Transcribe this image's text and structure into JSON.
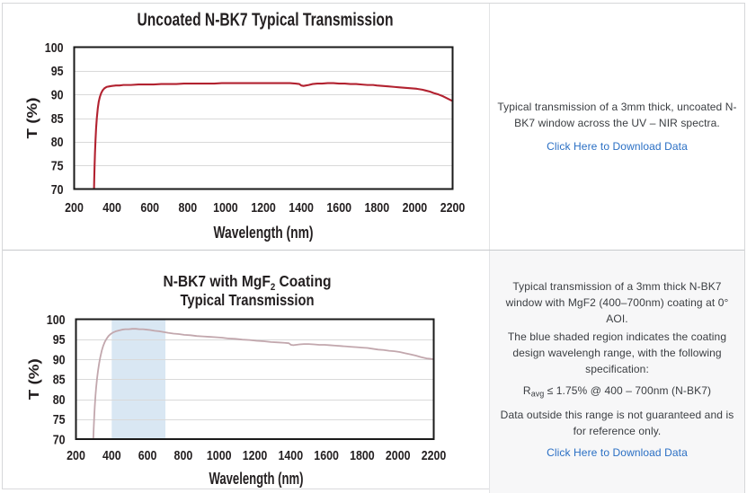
{
  "panel": {
    "row2_bg": "#f7f7f8",
    "border_color": "#d6d7d9",
    "link_color": "#2a6fc4",
    "text_color": "#3a3d41"
  },
  "captions": [
    {
      "paragraphs": [
        [
          "Typical transmission of a 3mm thick, uncoated N-",
          "BK7 window across the UV – NIR spectra."
        ]
      ],
      "link_label": "Click Here to Download Data"
    },
    {
      "paragraphs": [
        [
          "Typical transmission of a 3mm thick N-BK7",
          "window with MgF2 (400–700nm) coating at 0°",
          "AOI."
        ],
        [
          "The blue shaded region indicates the coating",
          "design wavelengh range, with the following",
          "specification:"
        ],
        [
          "Data outside this range is not guaranteed and is",
          "for reference only."
        ]
      ],
      "spec": {
        "prefix": "R",
        "sub": "avg",
        "suffix": " ≤ 1.75% @ 400 – 700nm (N-BK7)"
      },
      "link_label": "Click Here to Download Data"
    }
  ],
  "chart_data": [
    {
      "type": "line",
      "title": "Uncoated N-BK7 Typical Transmission",
      "title_lines": [
        [
          {
            "t": "Uncoated N-BK7 Typical Transmission"
          }
        ]
      ],
      "xlabel": "Wavelength (nm)",
      "ylabel": "T (%)",
      "xlim": [
        200,
        2200
      ],
      "ylim": [
        70,
        100
      ],
      "xticks": [
        200,
        400,
        600,
        800,
        1000,
        1200,
        1400,
        1600,
        1800,
        2000,
        2200
      ],
      "yticks": [
        70,
        75,
        80,
        85,
        90,
        95,
        100
      ],
      "grid": "horizontal",
      "grid_color": "#d9d9d9",
      "frame_color": "#1a1a1a",
      "text_color": "#231f20",
      "legend": "none",
      "series": [
        {
          "name": "Uncoated N-BK7 transmission (3mm thick)",
          "color": "#b22230",
          "points": [
            [
              305,
              70.0
            ],
            [
              306,
              72.0
            ],
            [
              308,
              75.0
            ],
            [
              310,
              77.6
            ],
            [
              313,
              80.5
            ],
            [
              316,
              82.9
            ],
            [
              320,
              85.1
            ],
            [
              325,
              87.1
            ],
            [
              330,
              88.5
            ],
            [
              336,
              89.5
            ],
            [
              343,
              90.3
            ],
            [
              351,
              90.9
            ],
            [
              360,
              91.3
            ],
            [
              372,
              91.6
            ],
            [
              386,
              91.7
            ],
            [
              400,
              91.8
            ],
            [
              420,
              91.9
            ],
            [
              440,
              91.9
            ],
            [
              460,
              92.0
            ],
            [
              480,
              92.0
            ],
            [
              500,
              92.0
            ],
            [
              540,
              92.1
            ],
            [
              580,
              92.1
            ],
            [
              620,
              92.1
            ],
            [
              660,
              92.2
            ],
            [
              700,
              92.2
            ],
            [
              740,
              92.2
            ],
            [
              780,
              92.3
            ],
            [
              820,
              92.3
            ],
            [
              860,
              92.3
            ],
            [
              900,
              92.3
            ],
            [
              940,
              92.3
            ],
            [
              980,
              92.4
            ],
            [
              1020,
              92.4
            ],
            [
              1060,
              92.4
            ],
            [
              1100,
              92.4
            ],
            [
              1140,
              92.4
            ],
            [
              1180,
              92.4
            ],
            [
              1220,
              92.4
            ],
            [
              1260,
              92.4
            ],
            [
              1300,
              92.4
            ],
            [
              1340,
              92.4
            ],
            [
              1370,
              92.3
            ],
            [
              1390,
              92.2
            ],
            [
              1400,
              91.9
            ],
            [
              1412,
              91.8
            ],
            [
              1425,
              91.9
            ],
            [
              1440,
              92.0
            ],
            [
              1460,
              92.2
            ],
            [
              1485,
              92.3
            ],
            [
              1510,
              92.3
            ],
            [
              1540,
              92.4
            ],
            [
              1570,
              92.4
            ],
            [
              1600,
              92.3
            ],
            [
              1630,
              92.3
            ],
            [
              1660,
              92.2
            ],
            [
              1690,
              92.2
            ],
            [
              1720,
              92.1
            ],
            [
              1750,
              92.0
            ],
            [
              1780,
              92.0
            ],
            [
              1800,
              91.9
            ],
            [
              1830,
              91.8
            ],
            [
              1860,
              91.7
            ],
            [
              1890,
              91.6
            ],
            [
              1920,
              91.5
            ],
            [
              1950,
              91.4
            ],
            [
              1980,
              91.3
            ],
            [
              2010,
              91.2
            ],
            [
              2040,
              91.0
            ],
            [
              2060,
              90.8
            ],
            [
              2080,
              90.6
            ],
            [
              2100,
              90.3
            ],
            [
              2125,
              90.0
            ],
            [
              2150,
              89.6
            ],
            [
              2175,
              89.1
            ],
            [
              2200,
              88.6
            ]
          ]
        }
      ]
    },
    {
      "type": "line",
      "title": "N-BK7 with MgF2 Coating Typical Transmission",
      "title_lines": [
        [
          {
            "t": "N-BK7 with MgF"
          },
          {
            "t": "2",
            "sub": true
          },
          {
            "t": " Coating"
          }
        ],
        [
          {
            "t": "Typical Transmission"
          }
        ]
      ],
      "xlabel": "Wavelength (nm)",
      "ylabel": "T (%)",
      "xlim": [
        200,
        2200
      ],
      "ylim": [
        70,
        100
      ],
      "xticks": [
        200,
        400,
        600,
        800,
        1000,
        1200,
        1400,
        1600,
        1800,
        2000,
        2200
      ],
      "yticks": [
        70,
        75,
        80,
        85,
        90,
        95,
        100
      ],
      "grid": "horizontal",
      "grid_color": "#d9d9d9",
      "frame_color": "#1a1a1a",
      "text_color": "#231f20",
      "legend": "none",
      "band": {
        "x1": 400,
        "x2": 700,
        "color": "#d9e7f3",
        "name": "MgF2 coating design wavelength range (400 - 700nm)"
      },
      "series": [
        {
          "name": "N-BK7 with MgF2 coating transmission (3mm thick)",
          "color": "#c2a7ad",
          "points": [
            [
              297,
              70.0
            ],
            [
              299,
              72.5
            ],
            [
              302,
              75.5
            ],
            [
              305,
              78.0
            ],
            [
              309,
              80.8
            ],
            [
              313,
              83.0
            ],
            [
              318,
              85.2
            ],
            [
              323,
              87.0
            ],
            [
              329,
              88.8
            ],
            [
              336,
              90.5
            ],
            [
              344,
              92.1
            ],
            [
              352,
              93.3
            ],
            [
              361,
              94.3
            ],
            [
              371,
              95.1
            ],
            [
              382,
              95.8
            ],
            [
              394,
              96.3
            ],
            [
              408,
              96.7
            ],
            [
              424,
              97.0
            ],
            [
              440,
              97.2
            ],
            [
              458,
              97.4
            ],
            [
              476,
              97.5
            ],
            [
              495,
              97.5
            ],
            [
              515,
              97.6
            ],
            [
              535,
              97.6
            ],
            [
              555,
              97.5
            ],
            [
              575,
              97.5
            ],
            [
              595,
              97.4
            ],
            [
              615,
              97.3
            ],
            [
              640,
              97.1
            ],
            [
              665,
              97.0
            ],
            [
              690,
              96.8
            ],
            [
              715,
              96.6
            ],
            [
              745,
              96.4
            ],
            [
              775,
              96.3
            ],
            [
              805,
              96.1
            ],
            [
              840,
              96.0
            ],
            [
              875,
              95.8
            ],
            [
              910,
              95.7
            ],
            [
              945,
              95.6
            ],
            [
              980,
              95.5
            ],
            [
              1015,
              95.4
            ],
            [
              1050,
              95.2
            ],
            [
              1090,
              95.1
            ],
            [
              1130,
              94.9
            ],
            [
              1170,
              94.8
            ],
            [
              1210,
              94.6
            ],
            [
              1250,
              94.5
            ],
            [
              1290,
              94.3
            ],
            [
              1330,
              94.2
            ],
            [
              1365,
              94.1
            ],
            [
              1390,
              94.0
            ],
            [
              1402,
              93.6
            ],
            [
              1415,
              93.5
            ],
            [
              1430,
              93.6
            ],
            [
              1450,
              93.7
            ],
            [
              1475,
              93.8
            ],
            [
              1500,
              93.8
            ],
            [
              1530,
              93.7
            ],
            [
              1560,
              93.6
            ],
            [
              1590,
              93.6
            ],
            [
              1620,
              93.5
            ],
            [
              1650,
              93.4
            ],
            [
              1680,
              93.3
            ],
            [
              1710,
              93.2
            ],
            [
              1740,
              93.1
            ],
            [
              1770,
              93.0
            ],
            [
              1800,
              92.9
            ],
            [
              1830,
              92.8
            ],
            [
              1860,
              92.6
            ],
            [
              1890,
              92.4
            ],
            [
              1920,
              92.3
            ],
            [
              1950,
              92.1
            ],
            [
              1980,
              92.0
            ],
            [
              2010,
              91.8
            ],
            [
              2040,
              91.5
            ],
            [
              2070,
              91.2
            ],
            [
              2100,
              90.9
            ],
            [
              2130,
              90.5
            ],
            [
              2160,
              90.2
            ],
            [
              2180,
              90.1
            ],
            [
              2200,
              90.0
            ]
          ]
        }
      ]
    }
  ]
}
